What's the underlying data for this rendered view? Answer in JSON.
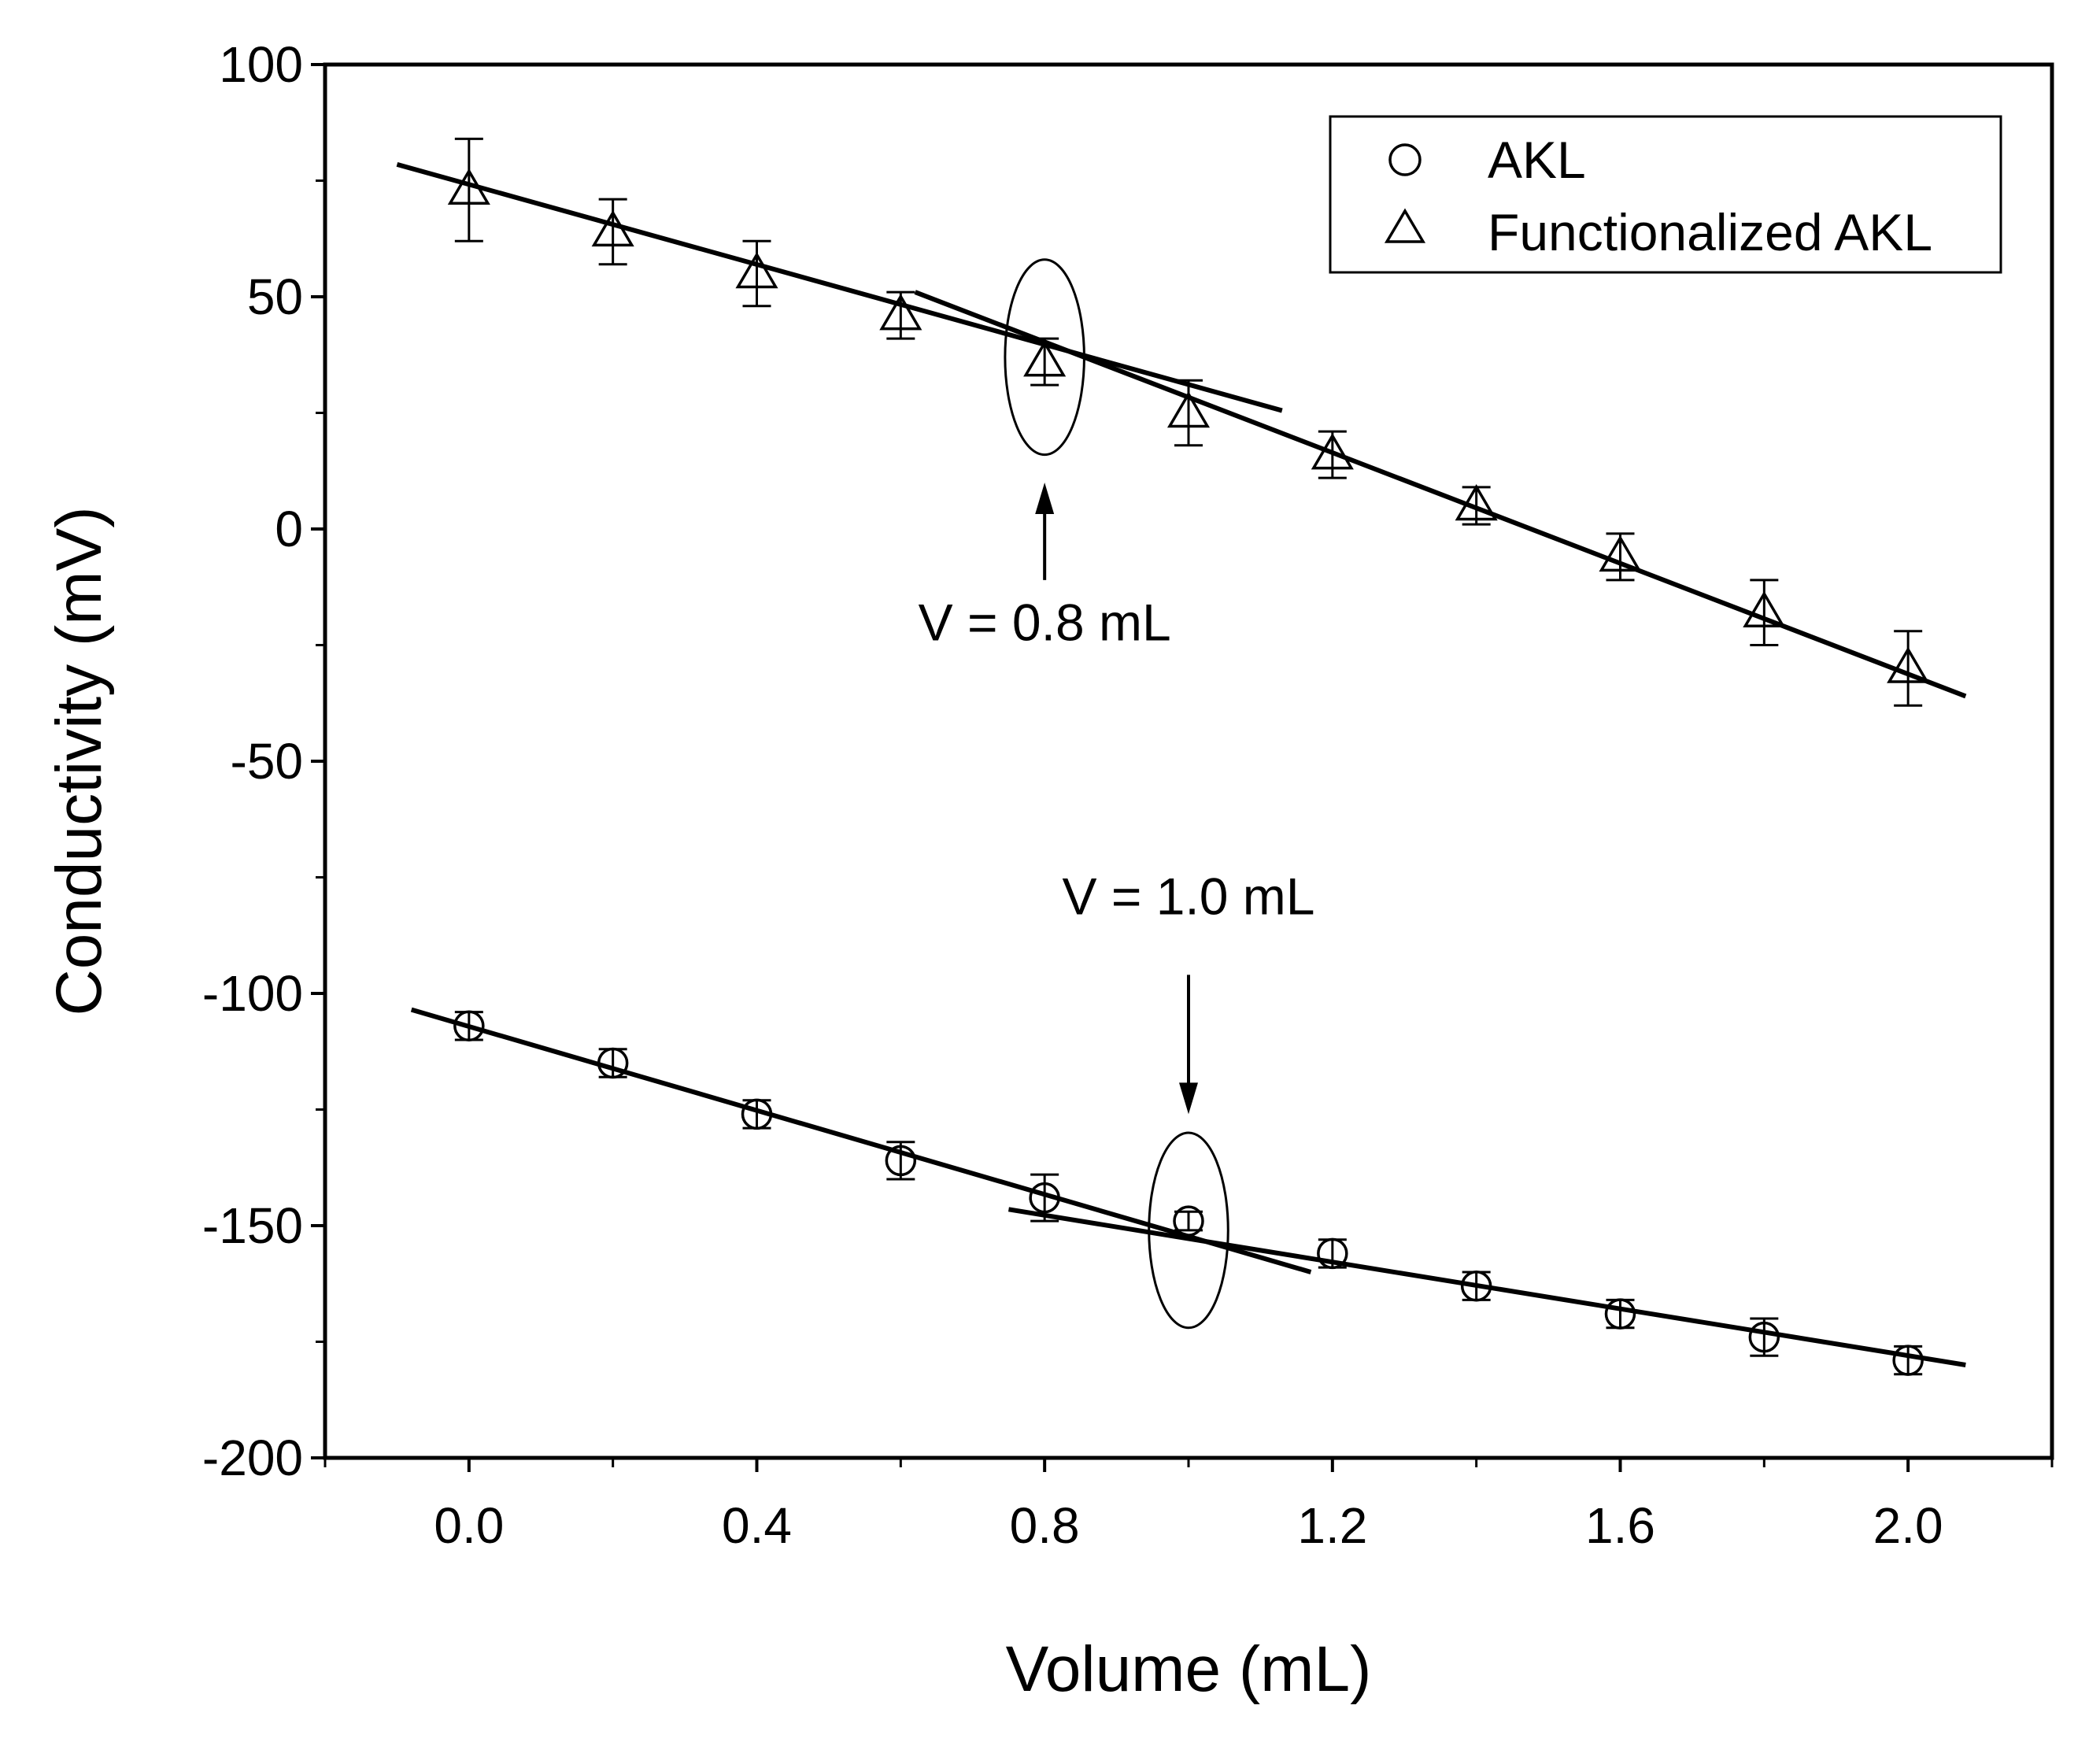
{
  "chart_data": {
    "type": "scatter",
    "title": "",
    "xlabel": "Volume (mL)",
    "ylabel": "Conductivity (mV)",
    "xlim": [
      -0.2,
      2.2
    ],
    "ylim": [
      -200,
      100
    ],
    "xticks": [
      0.0,
      0.4,
      0.8,
      1.2,
      1.6,
      2.0
    ],
    "xtick_labels": [
      "0.0",
      "0.4",
      "0.8",
      "1.2",
      "1.6",
      "2.0"
    ],
    "yticks": [
      -200,
      -150,
      -100,
      -50,
      0,
      50,
      100
    ],
    "ytick_labels": [
      "-200",
      "-150",
      "-100",
      "-50",
      "0",
      "50",
      "100"
    ],
    "grid": false,
    "legend_position": "top-right",
    "series": [
      {
        "name": "AKL",
        "marker": "circle",
        "x": [
          0.0,
          0.2,
          0.4,
          0.6,
          0.8,
          1.0,
          1.2,
          1.4,
          1.6,
          1.8,
          2.0
        ],
        "y": [
          -107,
          -115,
          -126,
          -136,
          -144,
          -149,
          -156,
          -163,
          -169,
          -174,
          -179
        ],
        "err": [
          3,
          3,
          3,
          4,
          5,
          2,
          3,
          3,
          3,
          4,
          3
        ]
      },
      {
        "name": "Functionalized AKL",
        "marker": "triangle",
        "x": [
          0.0,
          0.2,
          0.4,
          0.6,
          0.8,
          1.0,
          1.2,
          1.4,
          1.6,
          1.8,
          2.0
        ],
        "y": [
          73,
          64,
          55,
          46,
          36,
          25,
          16,
          5,
          -6,
          -18,
          -30
        ],
        "err": [
          11,
          7,
          7,
          5,
          5,
          7,
          5,
          4,
          5,
          7,
          8
        ]
      }
    ],
    "fit_lines": [
      {
        "series": "Functionalized AKL",
        "x": [
          -0.1,
          1.13
        ],
        "y": [
          78.5,
          25.5
        ]
      },
      {
        "series": "Functionalized AKL",
        "x": [
          0.62,
          2.08
        ],
        "y": [
          51.0,
          -36.0
        ]
      },
      {
        "series": "AKL",
        "x": [
          -0.08,
          1.17
        ],
        "y": [
          -103.5,
          -160.0
        ]
      },
      {
        "series": "AKL",
        "x": [
          0.75,
          2.08
        ],
        "y": [
          -146.5,
          -180.0
        ]
      }
    ],
    "annotations": [
      {
        "label": "V = 0.8 mL",
        "x": 0.8,
        "y": 37,
        "ellipse_rx": 0.055,
        "ellipse_ry": 21,
        "arrow_from_y": -11,
        "arrow_to_y": 10,
        "text_x": 0.8,
        "text_y": -24
      },
      {
        "label": "V = 1.0 mL",
        "x": 1.0,
        "y": -151,
        "ellipse_rx": 0.055,
        "ellipse_ry": 21,
        "arrow_from_y": -96,
        "arrow_to_y": -126,
        "text_x": 1.0,
        "text_y": -83
      }
    ]
  }
}
